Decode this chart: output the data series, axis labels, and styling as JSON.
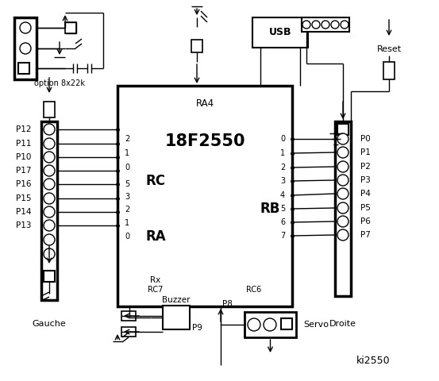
{
  "bg_color": "#ffffff",
  "title": "ki2550",
  "chip_label": "18F2550",
  "chip_sublabel": "RA4",
  "rc_label": "RC",
  "ra_label": "RA",
  "rb_label": "RB",
  "rx_label": "Rx",
  "rc7_label": "RC7",
  "rc6_label": "RC6",
  "usb_label": "USB",
  "reset_label": "Reset",
  "buzzer_label": "Buzzer",
  "p8_label": "P8",
  "p9_label": "P9",
  "servo_label": "Servo",
  "option_label": "option 8x22k",
  "gauche_label": "Gauche",
  "droite_label": "Droite",
  "rc_pins": [
    "2",
    "1",
    "0",
    "5",
    "3",
    "2",
    "1",
    "0"
  ],
  "rc_pin_labels": [
    "P12",
    "P11",
    "P10",
    "P17",
    "P16",
    "P15",
    "P14",
    "P13"
  ],
  "rb_pins": [
    "0",
    "1",
    "2",
    "3",
    "4",
    "5",
    "6",
    "7"
  ],
  "rb_pin_labels": [
    "P0",
    "P1",
    "P2",
    "P3",
    "P4",
    "P5",
    "P6",
    "P7"
  ]
}
